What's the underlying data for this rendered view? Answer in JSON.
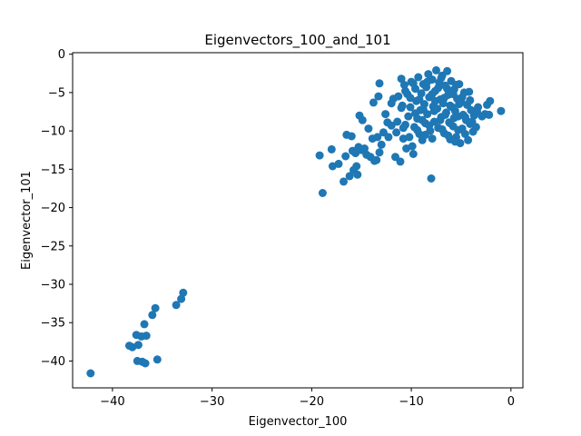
{
  "chart_data": {
    "type": "scatter",
    "title": "Eigenvectors_100_and_101",
    "xlabel": "Eigenvector_100",
    "ylabel": "Eigenvector_101",
    "xlim": [
      -44,
      1.2
    ],
    "ylim": [
      -43.5,
      0.2
    ],
    "xticks": [
      -40,
      -30,
      -20,
      -10,
      0
    ],
    "yticks": [
      0,
      -5,
      -10,
      -15,
      -20,
      -25,
      -30,
      -35,
      -40
    ],
    "xtick_labels": [
      "−40",
      "−30",
      "−20",
      "−10",
      "0"
    ],
    "ytick_labels": [
      "0",
      "−5",
      "−10",
      "−15",
      "−20",
      "−25",
      "−30",
      "−35",
      "−40"
    ],
    "grid": false,
    "legend": "none",
    "marker_color": "#1f77b4",
    "points": [
      [
        -42.2,
        -41.6
      ],
      [
        -38.3,
        -38.0
      ],
      [
        -38.0,
        -38.2
      ],
      [
        -37.6,
        -36.6
      ],
      [
        -37.4,
        -37.9
      ],
      [
        -37.5,
        -40.0
      ],
      [
        -37.0,
        -40.1
      ],
      [
        -36.7,
        -40.3
      ],
      [
        -37.1,
        -36.8
      ],
      [
        -36.8,
        -35.2
      ],
      [
        -36.6,
        -36.7
      ],
      [
        -36.0,
        -34.0
      ],
      [
        -35.7,
        -33.1
      ],
      [
        -35.5,
        -39.8
      ],
      [
        -33.6,
        -32.7
      ],
      [
        -33.1,
        -31.9
      ],
      [
        -32.9,
        -31.1
      ],
      [
        -19.2,
        -13.2
      ],
      [
        -18.9,
        -18.1
      ],
      [
        -18.0,
        -12.4
      ],
      [
        -17.9,
        -14.6
      ],
      [
        -17.3,
        -14.3
      ],
      [
        -16.8,
        -16.6
      ],
      [
        -16.6,
        -13.3
      ],
      [
        -16.5,
        -10.5
      ],
      [
        -16.2,
        -15.9
      ],
      [
        -16.0,
        -10.7
      ],
      [
        -15.9,
        -12.6
      ],
      [
        -15.8,
        -15.1
      ],
      [
        -15.6,
        -12.9
      ],
      [
        -15.5,
        -14.6
      ],
      [
        -15.4,
        -15.7
      ],
      [
        -15.3,
        -12.1
      ],
      [
        -15.2,
        -8.0
      ],
      [
        -15.0,
        -12.5
      ],
      [
        -14.9,
        -8.6
      ],
      [
        -14.7,
        -12.3
      ],
      [
        -14.5,
        -13.1
      ],
      [
        -14.3,
        -9.7
      ],
      [
        -14.1,
        -13.4
      ],
      [
        -13.9,
        -11.0
      ],
      [
        -13.8,
        -6.3
      ],
      [
        -13.7,
        -13.9
      ],
      [
        -13.5,
        -13.8
      ],
      [
        -13.4,
        -10.8
      ],
      [
        -13.2,
        -12.8
      ],
      [
        -13.3,
        -5.5
      ],
      [
        -13.2,
        -3.8
      ],
      [
        -13.0,
        -11.8
      ],
      [
        -12.8,
        -10.2
      ],
      [
        -12.6,
        -7.8
      ],
      [
        -12.4,
        -8.9
      ],
      [
        -12.3,
        -10.8
      ],
      [
        -12.0,
        -9.3
      ],
      [
        -11.8,
        -5.8
      ],
      [
        -11.6,
        -13.4
      ],
      [
        -11.5,
        -10.2
      ],
      [
        -11.4,
        -8.8
      ],
      [
        -11.3,
        -5.5
      ],
      [
        -11.1,
        -14.0
      ],
      [
        -11.0,
        -3.2
      ],
      [
        -10.9,
        -6.7
      ],
      [
        -10.8,
        -11.0
      ],
      [
        -10.7,
        -4.0
      ],
      [
        -10.6,
        -9.2
      ],
      [
        -10.5,
        -12.3
      ],
      [
        -10.4,
        -5.2
      ],
      [
        -10.3,
        -8.1
      ],
      [
        -10.2,
        -10.8
      ],
      [
        -10.1,
        -6.9
      ],
      [
        -10.0,
        -3.6
      ],
      [
        -9.9,
        -12.0
      ],
      [
        -9.8,
        -13.0
      ],
      [
        -9.7,
        -9.5
      ],
      [
        -9.6,
        -4.5
      ],
      [
        -9.5,
        -6.1
      ],
      [
        -9.4,
        -8.4
      ],
      [
        -9.3,
        -3.0
      ],
      [
        -9.2,
        -10.4
      ],
      [
        -9.1,
        -7.3
      ],
      [
        -9.0,
        -5.1
      ],
      [
        -8.9,
        -11.2
      ],
      [
        -8.8,
        -3.9
      ],
      [
        -8.7,
        -6.5
      ],
      [
        -8.6,
        -9.0
      ],
      [
        -8.5,
        -4.3
      ],
      [
        -8.4,
        -7.8
      ],
      [
        -8.3,
        -2.6
      ],
      [
        -8.2,
        -5.6
      ],
      [
        -8.1,
        -10.0
      ],
      [
        -8.0,
        -16.2
      ],
      [
        -7.9,
        -3.3
      ],
      [
        -7.8,
        -6.8
      ],
      [
        -7.7,
        -8.8
      ],
      [
        -7.6,
        -4.8
      ],
      [
        -7.5,
        -2.1
      ],
      [
        -7.4,
        -7.1
      ],
      [
        -7.3,
        -9.6
      ],
      [
        -7.2,
        -3.7
      ],
      [
        -7.1,
        -5.9
      ],
      [
        -7.0,
        -8.2
      ],
      [
        -6.9,
        -2.8
      ],
      [
        -6.8,
        -6.4
      ],
      [
        -6.7,
        -10.3
      ],
      [
        -6.6,
        -4.1
      ],
      [
        -6.5,
        -7.6
      ],
      [
        -6.4,
        -2.2
      ],
      [
        -6.3,
        -5.3
      ],
      [
        -6.2,
        -8.9
      ],
      [
        -6.1,
        -11.1
      ],
      [
        -6.0,
        -3.5
      ],
      [
        -5.9,
        -6.9
      ],
      [
        -5.8,
        -9.4
      ],
      [
        -5.7,
        -4.6
      ],
      [
        -5.6,
        -7.4
      ],
      [
        -5.5,
        -10.8
      ],
      [
        -5.4,
        -5.8
      ],
      [
        -5.3,
        -8.1
      ],
      [
        -5.2,
        -3.9
      ],
      [
        -5.1,
        -11.6
      ],
      [
        -5.0,
        -6.2
      ],
      [
        -4.9,
        -9.7
      ],
      [
        -4.8,
        -7.9
      ],
      [
        -4.7,
        -5.0
      ],
      [
        -4.6,
        -10.4
      ],
      [
        -4.5,
        -8.6
      ],
      [
        -4.4,
        -6.6
      ],
      [
        -4.3,
        -11.2
      ],
      [
        -4.2,
        -4.9
      ],
      [
        -4.1,
        -9.1
      ],
      [
        -4.0,
        -7.3
      ],
      [
        -3.8,
        -10.1
      ],
      [
        -3.7,
        -8.0
      ],
      [
        -3.5,
        -9.5
      ],
      [
        -3.3,
        -6.9
      ],
      [
        -2.6,
        -7.8
      ],
      [
        -2.4,
        -6.6
      ],
      [
        -2.2,
        -7.9
      ],
      [
        -2.1,
        -6.1
      ],
      [
        -1.0,
        -7.4
      ],
      [
        -10.6,
        -4.8
      ],
      [
        -9.8,
        -3.8
      ],
      [
        -9.2,
        -5.9
      ],
      [
        -8.8,
        -7.2
      ],
      [
        -8.4,
        -3.6
      ],
      [
        -7.9,
        -5.2
      ],
      [
        -7.6,
        -6.1
      ],
      [
        -7.3,
        -4.4
      ],
      [
        -7.0,
        -3.1
      ],
      [
        -6.7,
        -5.7
      ],
      [
        -6.4,
        -4.5
      ],
      [
        -6.1,
        -6.7
      ],
      [
        -5.8,
        -5.2
      ],
      [
        -5.5,
        -4.0
      ],
      [
        -5.2,
        -6.5
      ],
      [
        -4.9,
        -5.6
      ],
      [
        -8.9,
        -8.6
      ],
      [
        -8.2,
        -9.3
      ],
      [
        -7.7,
        -7.4
      ],
      [
        -7.1,
        -8.6
      ],
      [
        -6.6,
        -7.9
      ],
      [
        -6.1,
        -9.0
      ],
      [
        -5.7,
        -8.3
      ],
      [
        -5.3,
        -9.9
      ],
      [
        -9.6,
        -7.7
      ],
      [
        -10.1,
        -5.7
      ],
      [
        -11.0,
        -7.0
      ],
      [
        -10.8,
        -9.6
      ],
      [
        -12.0,
        -6.4
      ],
      [
        -9.4,
        -9.9
      ],
      [
        -8.6,
        -10.5
      ],
      [
        -7.9,
        -11.0
      ],
      [
        -6.9,
        -9.8
      ],
      [
        -6.3,
        -10.6
      ],
      [
        -5.6,
        -11.4
      ],
      [
        -4.6,
        -8.2
      ],
      [
        -4.1,
        -6.0
      ],
      [
        -3.9,
        -8.8
      ],
      [
        -3.4,
        -7.5
      ],
      [
        -2.9,
        -8.1
      ]
    ]
  }
}
